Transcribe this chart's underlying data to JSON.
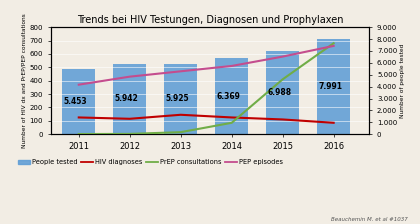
{
  "title": "Trends bei HIV Testungen, Diagnosen und Prophylaxen",
  "years": [
    2011,
    2012,
    2013,
    2014,
    2015,
    2016
  ],
  "people_tested": [
    5453,
    5942,
    5925,
    6369,
    6988,
    7991
  ],
  "hiv_diagnoses": [
    125,
    115,
    145,
    125,
    110,
    85
  ],
  "prep_consultations": [
    1,
    2,
    15,
    85,
    410,
    680
  ],
  "pep_episodes": [
    370,
    430,
    470,
    510,
    580,
    660
  ],
  "bar_color": "#5b9bd5",
  "hiv_color": "#c00000",
  "prep_color": "#70ad47",
  "pep_color": "#c44d8e",
  "bar_labels": [
    "5.453",
    "5.942",
    "5.925",
    "6.369",
    "6.988",
    "7.991"
  ],
  "ylabel_left": "Number of HIV dx and PrEP/PEP consultations",
  "ylabel_right": "Number of people tested",
  "ylim_left": [
    0,
    800
  ],
  "ylim_right": [
    0,
    9000
  ],
  "yticks_left": [
    0,
    100,
    200,
    300,
    400,
    500,
    600,
    700,
    800
  ],
  "yticks_right": [
    0,
    1000,
    2000,
    3000,
    4000,
    5000,
    6000,
    7000,
    8000,
    9000
  ],
  "ytick_labels_right": [
    "0",
    "1.000",
    "2.000",
    "3.000",
    "4.000",
    "5.000",
    "6.000",
    "7.000",
    "8.000",
    "9.000"
  ],
  "source": "Beauchemin M. et al #1037",
  "legend_labels": [
    "People tested",
    "HIV diagnoses",
    "PrEP consultations",
    "PEP episodes"
  ],
  "background_color": "#f2ede4"
}
